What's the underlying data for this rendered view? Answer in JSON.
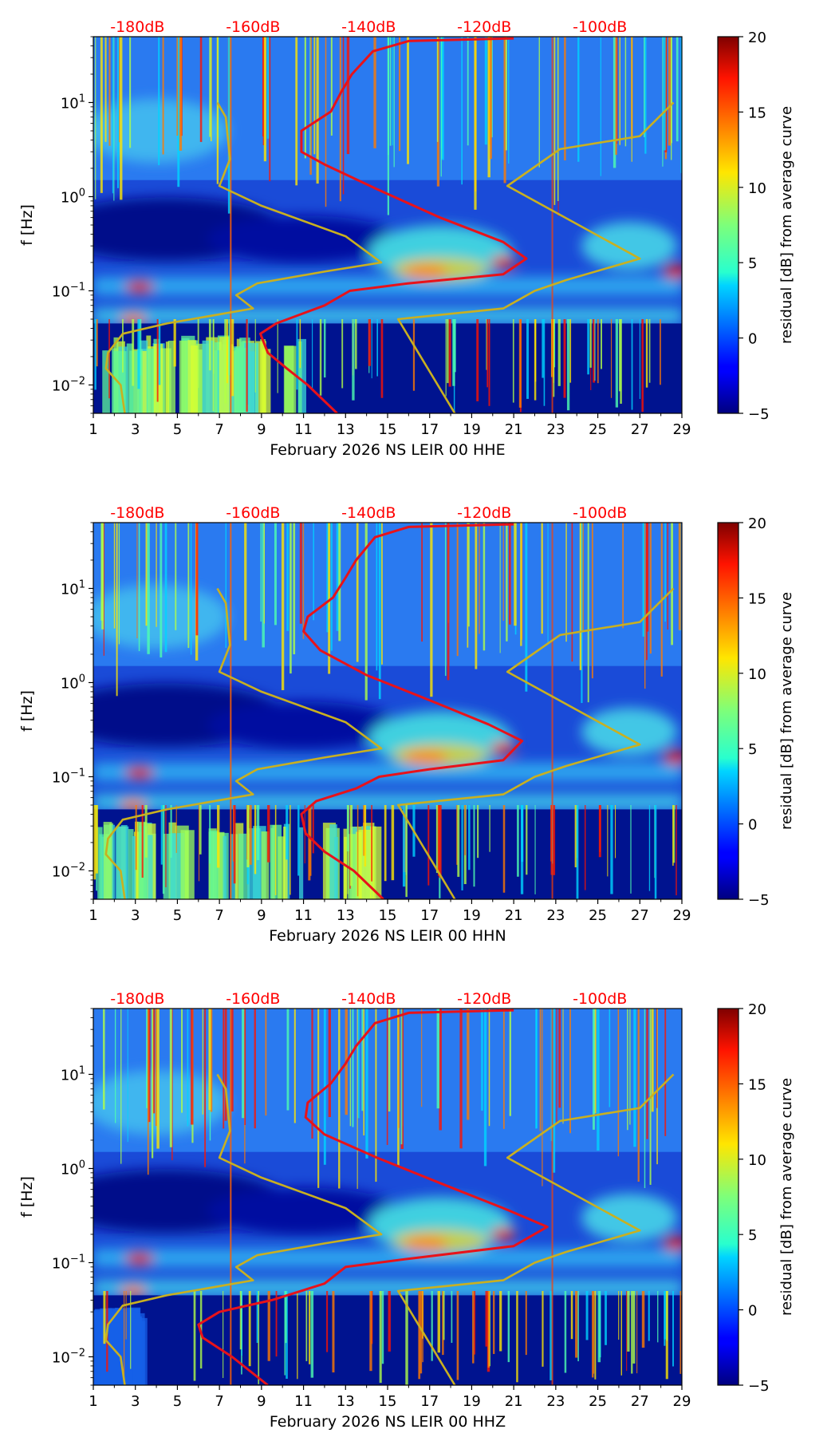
{
  "colors": {
    "db_label": "#ff0000",
    "red_curve": "#e8121a",
    "noise_model": "#c9b020",
    "axis": "#000000"
  },
  "colorbar": {
    "label": "residual [dB] from average curve",
    "ticks": [
      "20",
      "15",
      "10",
      "5",
      "0",
      "−5"
    ],
    "range": [
      -5,
      20
    ]
  },
  "chart_data": [
    {
      "type": "heatmap",
      "xlabel": "February 2026 NS LEIR 00 HHE",
      "ylabel": "f [Hz]",
      "x_ticks": [
        "1",
        "3",
        "5",
        "7",
        "9",
        "11",
        "13",
        "15",
        "17",
        "19",
        "21",
        "23",
        "25",
        "27",
        "29"
      ],
      "y_ticks": [
        "10^-2",
        "10^-1",
        "10^0",
        "10^1"
      ],
      "xlim": [
        1,
        29
      ],
      "ylim_hz": [
        0.005,
        50
      ],
      "top_labels": [
        "-180dB",
        "-160dB",
        "-140dB",
        "-120dB",
        "-100dB"
      ],
      "red_curve": [
        {
          "x": 12.6,
          "f": 0.005
        },
        {
          "x": 11.2,
          "f": 0.01
        },
        {
          "x": 10.2,
          "f": 0.015
        },
        {
          "x": 9.3,
          "f": 0.022
        },
        {
          "x": 8.95,
          "f": 0.035
        },
        {
          "x": 9.7,
          "f": 0.045
        },
        {
          "x": 12.0,
          "f": 0.07
        },
        {
          "x": 13.2,
          "f": 0.1
        },
        {
          "x": 16.0,
          "f": 0.12
        },
        {
          "x": 20.5,
          "f": 0.15
        },
        {
          "x": 21.6,
          "f": 0.22
        },
        {
          "x": 20.5,
          "f": 0.33
        },
        {
          "x": 17.5,
          "f": 0.6
        },
        {
          "x": 14.5,
          "f": 1.2
        },
        {
          "x": 12.0,
          "f": 2.2
        },
        {
          "x": 10.9,
          "f": 3.0
        },
        {
          "x": 10.9,
          "f": 5.0
        },
        {
          "x": 12.3,
          "f": 8.0
        },
        {
          "x": 12.8,
          "f": 13.0
        },
        {
          "x": 13.3,
          "f": 20.0
        },
        {
          "x": 14.3,
          "f": 35.0
        },
        {
          "x": 16.0,
          "f": 45.0
        },
        {
          "x": 21.0,
          "f": 48.0
        }
      ],
      "noise_low": [
        {
          "x": 2.5,
          "f": 0.005
        },
        {
          "x": 2.3,
          "f": 0.01
        },
        {
          "x": 1.6,
          "f": 0.015
        },
        {
          "x": 1.7,
          "f": 0.022
        },
        {
          "x": 2.4,
          "f": 0.035
        },
        {
          "x": 4.5,
          "f": 0.045
        },
        {
          "x": 8.6,
          "f": 0.065
        },
        {
          "x": 7.8,
          "f": 0.09
        },
        {
          "x": 8.8,
          "f": 0.12
        },
        {
          "x": 12.0,
          "f": 0.16
        },
        {
          "x": 14.7,
          "f": 0.2
        },
        {
          "x": 13.0,
          "f": 0.38
        },
        {
          "x": 9.0,
          "f": 0.8
        },
        {
          "x": 7.0,
          "f": 1.3
        },
        {
          "x": 7.5,
          "f": 2.5
        },
        {
          "x": 7.3,
          "f": 7.0
        },
        {
          "x": 6.9,
          "f": 10.0
        }
      ],
      "noise_high": [
        {
          "x": 18.2,
          "f": 0.005
        },
        {
          "x": 15.5,
          "f": 0.05
        },
        {
          "x": 20.5,
          "f": 0.065
        },
        {
          "x": 22.0,
          "f": 0.1
        },
        {
          "x": 23.5,
          "f": 0.13
        },
        {
          "x": 27.0,
          "f": 0.22
        },
        {
          "x": 20.7,
          "f": 1.3
        },
        {
          "x": 23.2,
          "f": 3.2
        },
        {
          "x": 27.0,
          "f": 4.4
        },
        {
          "x": 28.6,
          "f": 10.0
        }
      ]
    },
    {
      "type": "heatmap",
      "xlabel": "February 2026 NS LEIR 00 HHN",
      "ylabel": "f [Hz]",
      "x_ticks": [
        "1",
        "3",
        "5",
        "7",
        "9",
        "11",
        "13",
        "15",
        "17",
        "19",
        "21",
        "23",
        "25",
        "27",
        "29"
      ],
      "y_ticks": [
        "10^-2",
        "10^-1",
        "10^0",
        "10^1"
      ],
      "xlim": [
        1,
        29
      ],
      "ylim_hz": [
        0.005,
        50
      ],
      "top_labels": [
        "-180dB",
        "-160dB",
        "-140dB",
        "-120dB",
        "-100dB"
      ],
      "red_curve": [
        {
          "x": 14.8,
          "f": 0.005
        },
        {
          "x": 13.4,
          "f": 0.01
        },
        {
          "x": 12.0,
          "f": 0.016
        },
        {
          "x": 11.1,
          "f": 0.025
        },
        {
          "x": 10.9,
          "f": 0.04
        },
        {
          "x": 11.6,
          "f": 0.055
        },
        {
          "x": 13.5,
          "f": 0.075
        },
        {
          "x": 14.6,
          "f": 0.1
        },
        {
          "x": 17.0,
          "f": 0.12
        },
        {
          "x": 20.5,
          "f": 0.15
        },
        {
          "x": 21.4,
          "f": 0.24
        },
        {
          "x": 19.8,
          "f": 0.36
        },
        {
          "x": 17.0,
          "f": 0.65
        },
        {
          "x": 14.0,
          "f": 1.2
        },
        {
          "x": 11.8,
          "f": 2.2
        },
        {
          "x": 11.0,
          "f": 3.5
        },
        {
          "x": 11.2,
          "f": 5.0
        },
        {
          "x": 12.4,
          "f": 8.0
        },
        {
          "x": 13.0,
          "f": 13.0
        },
        {
          "x": 13.5,
          "f": 20.0
        },
        {
          "x": 14.4,
          "f": 35.0
        },
        {
          "x": 16.0,
          "f": 45.0
        },
        {
          "x": 21.0,
          "f": 48.0
        }
      ],
      "noise_low": [
        {
          "x": 2.5,
          "f": 0.005
        },
        {
          "x": 2.3,
          "f": 0.01
        },
        {
          "x": 1.6,
          "f": 0.015
        },
        {
          "x": 1.7,
          "f": 0.022
        },
        {
          "x": 2.4,
          "f": 0.035
        },
        {
          "x": 4.5,
          "f": 0.045
        },
        {
          "x": 8.6,
          "f": 0.065
        },
        {
          "x": 7.8,
          "f": 0.09
        },
        {
          "x": 8.8,
          "f": 0.12
        },
        {
          "x": 12.0,
          "f": 0.16
        },
        {
          "x": 14.7,
          "f": 0.2
        },
        {
          "x": 13.0,
          "f": 0.38
        },
        {
          "x": 9.0,
          "f": 0.8
        },
        {
          "x": 7.0,
          "f": 1.3
        },
        {
          "x": 7.5,
          "f": 2.5
        },
        {
          "x": 7.3,
          "f": 7.0
        },
        {
          "x": 6.9,
          "f": 10.0
        }
      ],
      "noise_high": [
        {
          "x": 18.2,
          "f": 0.005
        },
        {
          "x": 15.5,
          "f": 0.05
        },
        {
          "x": 20.5,
          "f": 0.065
        },
        {
          "x": 22.0,
          "f": 0.1
        },
        {
          "x": 23.5,
          "f": 0.13
        },
        {
          "x": 27.0,
          "f": 0.22
        },
        {
          "x": 20.7,
          "f": 1.3
        },
        {
          "x": 23.2,
          "f": 3.2
        },
        {
          "x": 27.0,
          "f": 4.4
        },
        {
          "x": 28.6,
          "f": 10.0
        }
      ]
    },
    {
      "type": "heatmap",
      "xlabel": "February 2026 NS LEIR 00 HHZ",
      "ylabel": "f [Hz]",
      "x_ticks": [
        "1",
        "3",
        "5",
        "7",
        "9",
        "11",
        "13",
        "15",
        "17",
        "19",
        "21",
        "23",
        "25",
        "27",
        "29"
      ],
      "y_ticks": [
        "10^-2",
        "10^-1",
        "10^0",
        "10^1"
      ],
      "xlim": [
        1,
        29
      ],
      "ylim_hz": [
        0.005,
        50
      ],
      "top_labels": [
        "-180dB",
        "-160dB",
        "-140dB",
        "-120dB",
        "-100dB"
      ],
      "red_curve": [
        {
          "x": 9.3,
          "f": 0.005
        },
        {
          "x": 7.6,
          "f": 0.01
        },
        {
          "x": 6.2,
          "f": 0.016
        },
        {
          "x": 6.0,
          "f": 0.022
        },
        {
          "x": 7.0,
          "f": 0.03
        },
        {
          "x": 9.5,
          "f": 0.04
        },
        {
          "x": 12.0,
          "f": 0.06
        },
        {
          "x": 13.0,
          "f": 0.09
        },
        {
          "x": 16.0,
          "f": 0.11
        },
        {
          "x": 21.0,
          "f": 0.15
        },
        {
          "x": 22.6,
          "f": 0.24
        },
        {
          "x": 20.5,
          "f": 0.38
        },
        {
          "x": 17.5,
          "f": 0.7
        },
        {
          "x": 14.5,
          "f": 1.3
        },
        {
          "x": 12.0,
          "f": 2.3
        },
        {
          "x": 11.1,
          "f": 3.5
        },
        {
          "x": 11.2,
          "f": 5.0
        },
        {
          "x": 12.3,
          "f": 8.0
        },
        {
          "x": 13.0,
          "f": 13.0
        },
        {
          "x": 13.5,
          "f": 20.0
        },
        {
          "x": 14.4,
          "f": 35.0
        },
        {
          "x": 16.0,
          "f": 45.0
        },
        {
          "x": 21.0,
          "f": 48.0
        }
      ],
      "noise_low": [
        {
          "x": 2.5,
          "f": 0.005
        },
        {
          "x": 2.3,
          "f": 0.01
        },
        {
          "x": 1.6,
          "f": 0.015
        },
        {
          "x": 1.7,
          "f": 0.022
        },
        {
          "x": 2.4,
          "f": 0.035
        },
        {
          "x": 4.5,
          "f": 0.045
        },
        {
          "x": 8.6,
          "f": 0.065
        },
        {
          "x": 7.8,
          "f": 0.09
        },
        {
          "x": 8.8,
          "f": 0.12
        },
        {
          "x": 12.0,
          "f": 0.16
        },
        {
          "x": 14.7,
          "f": 0.2
        },
        {
          "x": 13.0,
          "f": 0.38
        },
        {
          "x": 9.0,
          "f": 0.8
        },
        {
          "x": 7.0,
          "f": 1.3
        },
        {
          "x": 7.5,
          "f": 2.5
        },
        {
          "x": 7.3,
          "f": 7.0
        },
        {
          "x": 6.9,
          "f": 10.0
        }
      ],
      "noise_high": [
        {
          "x": 18.2,
          "f": 0.005
        },
        {
          "x": 15.5,
          "f": 0.05
        },
        {
          "x": 20.5,
          "f": 0.065
        },
        {
          "x": 22.0,
          "f": 0.1
        },
        {
          "x": 23.5,
          "f": 0.13
        },
        {
          "x": 27.0,
          "f": 0.22
        },
        {
          "x": 20.7,
          "f": 1.3
        },
        {
          "x": 23.2,
          "f": 3.2
        },
        {
          "x": 27.0,
          "f": 4.4
        },
        {
          "x": 28.6,
          "f": 10.0
        }
      ]
    }
  ]
}
